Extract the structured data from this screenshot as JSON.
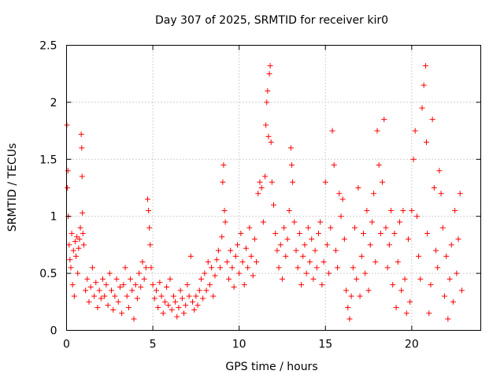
{
  "chart_data": {
    "type": "scatter",
    "title": "Day 307 of 2025, SRMTID for receiver kir0",
    "xlabel": "GPS time / hours",
    "ylabel": "SRMTID / TECUs",
    "xlim": [
      0,
      24
    ],
    "ylim": [
      0,
      2.5
    ],
    "xticks": [
      0,
      5,
      10,
      15,
      20
    ],
    "yticks": [
      0,
      0.5,
      1,
      1.5,
      2,
      2.5
    ],
    "xtick_labels": [
      "0",
      "5",
      "10",
      "15",
      "20"
    ],
    "ytick_labels": [
      "0",
      "0.5",
      "1",
      "1.5",
      "2",
      "2.5"
    ],
    "grid": true,
    "marker": "+",
    "color": "#ff0000",
    "series": [
      {
        "name": "kir0",
        "points": [
          [
            0.02,
            1.8
          ],
          [
            0.05,
            1.25
          ],
          [
            0.08,
            1.4
          ],
          [
            0.1,
            1.0
          ],
          [
            0.15,
            0.75
          ],
          [
            0.2,
            0.62
          ],
          [
            0.25,
            0.55
          ],
          [
            0.3,
            0.85
          ],
          [
            0.35,
            0.4
          ],
          [
            0.4,
            0.7
          ],
          [
            0.45,
            0.3
          ],
          [
            0.5,
            0.78
          ],
          [
            0.55,
            0.65
          ],
          [
            0.6,
            0.82
          ],
          [
            0.65,
            0.5
          ],
          [
            0.7,
            0.72
          ],
          [
            0.75,
            0.8
          ],
          [
            0.8,
            0.9
          ],
          [
            0.85,
            1.72
          ],
          [
            0.88,
            1.6
          ],
          [
            0.9,
            1.35
          ],
          [
            0.92,
            1.03
          ],
          [
            0.95,
            0.85
          ],
          [
            1.0,
            0.75
          ],
          [
            1.1,
            0.35
          ],
          [
            1.2,
            0.45
          ],
          [
            1.3,
            0.25
          ],
          [
            1.4,
            0.38
          ],
          [
            1.5,
            0.55
          ],
          [
            1.6,
            0.3
          ],
          [
            1.7,
            0.42
          ],
          [
            1.8,
            0.2
          ],
          [
            1.9,
            0.35
          ],
          [
            2.0,
            0.28
          ],
          [
            2.1,
            0.45
          ],
          [
            2.2,
            0.3
          ],
          [
            2.3,
            0.4
          ],
          [
            2.4,
            0.22
          ],
          [
            2.5,
            0.5
          ],
          [
            2.6,
            0.35
          ],
          [
            2.7,
            0.18
          ],
          [
            2.8,
            0.3
          ],
          [
            2.9,
            0.45
          ],
          [
            3.0,
            0.25
          ],
          [
            3.1,
            0.38
          ],
          [
            3.2,
            0.15
          ],
          [
            3.3,
            0.4
          ],
          [
            3.4,
            0.55
          ],
          [
            3.5,
            0.3
          ],
          [
            3.6,
            0.2
          ],
          [
            3.7,
            0.45
          ],
          [
            3.8,
            0.35
          ],
          [
            3.9,
            0.1
          ],
          [
            4.0,
            0.4
          ],
          [
            4.1,
            0.28
          ],
          [
            4.2,
            0.5
          ],
          [
            4.3,
            0.38
          ],
          [
            4.4,
            0.6
          ],
          [
            4.5,
            0.45
          ],
          [
            4.6,
            0.55
          ],
          [
            4.7,
            1.15
          ],
          [
            4.75,
            1.05
          ],
          [
            4.8,
            0.9
          ],
          [
            4.85,
            0.75
          ],
          [
            4.9,
            0.55
          ],
          [
            5.0,
            0.4
          ],
          [
            5.1,
            0.28
          ],
          [
            5.2,
            0.35
          ],
          [
            5.3,
            0.2
          ],
          [
            5.4,
            0.42
          ],
          [
            5.5,
            0.3
          ],
          [
            5.6,
            0.15
          ],
          [
            5.7,
            0.25
          ],
          [
            5.8,
            0.38
          ],
          [
            5.9,
            0.22
          ],
          [
            6.0,
            0.45
          ],
          [
            6.1,
            0.18
          ],
          [
            6.2,
            0.3
          ],
          [
            6.3,
            0.25
          ],
          [
            6.4,
            0.12
          ],
          [
            6.5,
            0.2
          ],
          [
            6.6,
            0.35
          ],
          [
            6.7,
            0.28
          ],
          [
            6.8,
            0.15
          ],
          [
            6.9,
            0.22
          ],
          [
            7.0,
            0.4
          ],
          [
            7.1,
            0.3
          ],
          [
            7.2,
            0.65
          ],
          [
            7.3,
            0.25
          ],
          [
            7.4,
            0.18
          ],
          [
            7.5,
            0.3
          ],
          [
            7.6,
            0.22
          ],
          [
            7.7,
            0.35
          ],
          [
            7.8,
            0.45
          ],
          [
            7.9,
            0.28
          ],
          [
            8.0,
            0.5
          ],
          [
            8.1,
            0.35
          ],
          [
            8.2,
            0.6
          ],
          [
            8.3,
            0.4
          ],
          [
            8.4,
            0.55
          ],
          [
            8.5,
            0.3
          ],
          [
            8.6,
            0.48
          ],
          [
            8.7,
            0.62
          ],
          [
            8.8,
            0.7
          ],
          [
            8.9,
            0.55
          ],
          [
            9.0,
            0.82
          ],
          [
            9.05,
            1.3
          ],
          [
            9.1,
            1.45
          ],
          [
            9.15,
            1.05
          ],
          [
            9.2,
            0.95
          ],
          [
            9.3,
            0.6
          ],
          [
            9.4,
            0.45
          ],
          [
            9.5,
            0.7
          ],
          [
            9.6,
            0.55
          ],
          [
            9.7,
            0.38
          ],
          [
            9.8,
            0.65
          ],
          [
            9.9,
            0.75
          ],
          [
            10.0,
            0.5
          ],
          [
            10.1,
            0.85
          ],
          [
            10.2,
            0.6
          ],
          [
            10.3,
            0.4
          ],
          [
            10.4,
            0.72
          ],
          [
            10.5,
            0.55
          ],
          [
            10.6,
            0.9
          ],
          [
            10.7,
            0.65
          ],
          [
            10.8,
            0.48
          ],
          [
            10.9,
            0.8
          ],
          [
            11.0,
            0.6
          ],
          [
            11.1,
            1.2
          ],
          [
            11.2,
            1.3
          ],
          [
            11.3,
            1.25
          ],
          [
            11.4,
            0.95
          ],
          [
            11.5,
            1.35
          ],
          [
            11.55,
            1.8
          ],
          [
            11.6,
            2.0
          ],
          [
            11.65,
            2.1
          ],
          [
            11.7,
            1.7
          ],
          [
            11.75,
            2.25
          ],
          [
            11.8,
            2.32
          ],
          [
            11.85,
            1.65
          ],
          [
            11.9,
            1.3
          ],
          [
            12.0,
            1.1
          ],
          [
            12.1,
            0.85
          ],
          [
            12.2,
            0.7
          ],
          [
            12.3,
            0.55
          ],
          [
            12.4,
            0.75
          ],
          [
            12.5,
            0.45
          ],
          [
            12.6,
            0.9
          ],
          [
            12.7,
            0.65
          ],
          [
            12.8,
            0.8
          ],
          [
            12.9,
            1.05
          ],
          [
            13.0,
            1.6
          ],
          [
            13.05,
            1.45
          ],
          [
            13.1,
            1.3
          ],
          [
            13.2,
            0.95
          ],
          [
            13.3,
            0.7
          ],
          [
            13.4,
            0.55
          ],
          [
            13.5,
            0.85
          ],
          [
            13.6,
            0.4
          ],
          [
            13.7,
            0.65
          ],
          [
            13.8,
            0.75
          ],
          [
            13.9,
            0.5
          ],
          [
            14.0,
            0.9
          ],
          [
            14.1,
            0.6
          ],
          [
            14.2,
            0.8
          ],
          [
            14.3,
            0.45
          ],
          [
            14.4,
            0.7
          ],
          [
            14.5,
            0.55
          ],
          [
            14.6,
            0.85
          ],
          [
            14.7,
            0.95
          ],
          [
            14.8,
            0.4
          ],
          [
            14.9,
            0.6
          ],
          [
            15.0,
            1.3
          ],
          [
            15.1,
            0.75
          ],
          [
            15.2,
            0.5
          ],
          [
            15.3,
            0.9
          ],
          [
            15.4,
            1.75
          ],
          [
            15.5,
            1.45
          ],
          [
            15.6,
            0.7
          ],
          [
            15.7,
            0.55
          ],
          [
            15.8,
            1.2
          ],
          [
            15.9,
            1.0
          ],
          [
            16.0,
            1.15
          ],
          [
            16.1,
            0.8
          ],
          [
            16.2,
            0.35
          ],
          [
            16.3,
            0.2
          ],
          [
            16.4,
            0.1
          ],
          [
            16.5,
            0.3
          ],
          [
            16.6,
            0.55
          ],
          [
            16.7,
            0.9
          ],
          [
            16.8,
            0.45
          ],
          [
            16.9,
            1.25
          ],
          [
            17.0,
            0.3
          ],
          [
            17.1,
            0.65
          ],
          [
            17.2,
            0.85
          ],
          [
            17.3,
            0.5
          ],
          [
            17.4,
            1.05
          ],
          [
            17.5,
            0.35
          ],
          [
            17.6,
            0.75
          ],
          [
            17.7,
            0.95
          ],
          [
            17.8,
            1.2
          ],
          [
            17.9,
            0.6
          ],
          [
            18.0,
            1.75
          ],
          [
            18.1,
            1.45
          ],
          [
            18.2,
            0.85
          ],
          [
            18.3,
            1.3
          ],
          [
            18.4,
            1.85
          ],
          [
            18.5,
            0.9
          ],
          [
            18.6,
            0.55
          ],
          [
            18.7,
            0.75
          ],
          [
            18.8,
            1.05
          ],
          [
            18.9,
            0.4
          ],
          [
            19.0,
            0.85
          ],
          [
            19.1,
            0.2
          ],
          [
            19.2,
            0.6
          ],
          [
            19.3,
            0.95
          ],
          [
            19.4,
            0.35
          ],
          [
            19.5,
            1.05
          ],
          [
            19.6,
            0.45
          ],
          [
            19.7,
            0.15
          ],
          [
            19.8,
            0.8
          ],
          [
            19.9,
            0.25
          ],
          [
            20.0,
            1.05
          ],
          [
            20.1,
            1.5
          ],
          [
            20.2,
            1.75
          ],
          [
            20.3,
            1.0
          ],
          [
            20.4,
            0.65
          ],
          [
            20.5,
            0.45
          ],
          [
            20.6,
            1.95
          ],
          [
            20.7,
            2.15
          ],
          [
            20.8,
            2.32
          ],
          [
            20.85,
            1.65
          ],
          [
            20.9,
            0.85
          ],
          [
            21.0,
            0.15
          ],
          [
            21.1,
            0.4
          ],
          [
            21.2,
            1.85
          ],
          [
            21.3,
            1.25
          ],
          [
            21.4,
            0.7
          ],
          [
            21.5,
            0.55
          ],
          [
            21.6,
            1.4
          ],
          [
            21.7,
            1.2
          ],
          [
            21.8,
            0.9
          ],
          [
            21.9,
            0.3
          ],
          [
            22.0,
            0.65
          ],
          [
            22.1,
            0.1
          ],
          [
            22.2,
            0.45
          ],
          [
            22.3,
            0.75
          ],
          [
            22.4,
            0.25
          ],
          [
            22.5,
            1.05
          ],
          [
            22.6,
            0.5
          ],
          [
            22.7,
            0.8
          ],
          [
            22.8,
            1.2
          ],
          [
            22.9,
            0.35
          ]
        ]
      }
    ]
  }
}
